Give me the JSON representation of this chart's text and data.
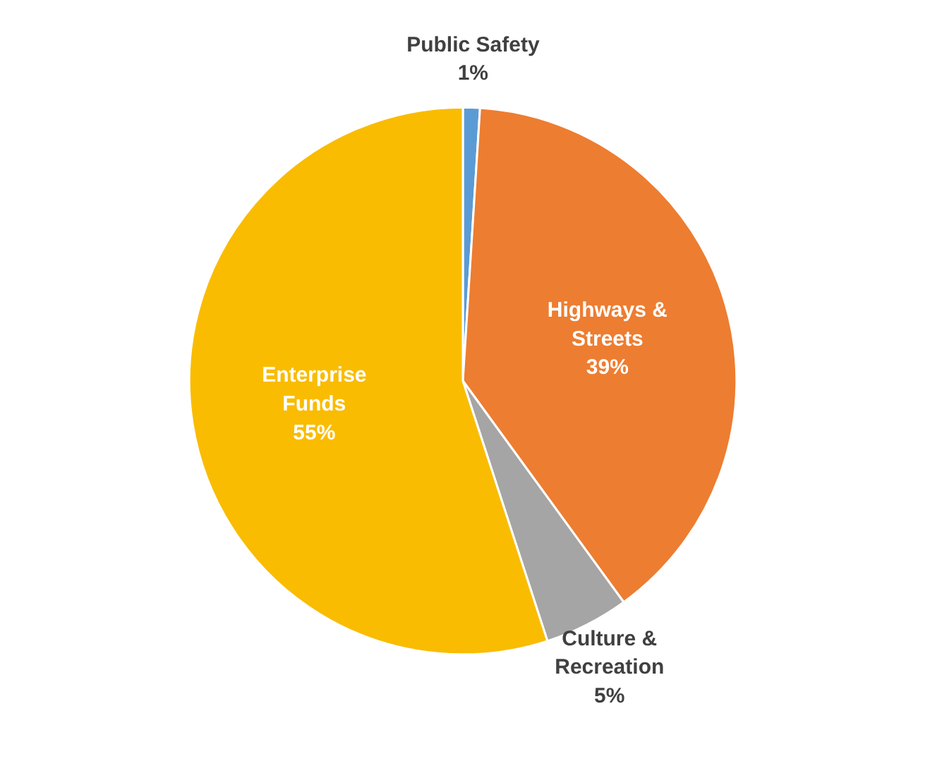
{
  "chart_data": {
    "type": "pie",
    "categories": [
      "Public Safety",
      "Highways & Streets",
      "Culture & Recreation",
      "Enterprise Funds"
    ],
    "values": [
      1,
      39,
      5,
      55
    ],
    "colors": [
      "#5b9bd5",
      "#ed7d31",
      "#a5a5a5",
      "#f9bc00"
    ],
    "value_labels": [
      "1%",
      "39%",
      "5%",
      "55%"
    ]
  }
}
